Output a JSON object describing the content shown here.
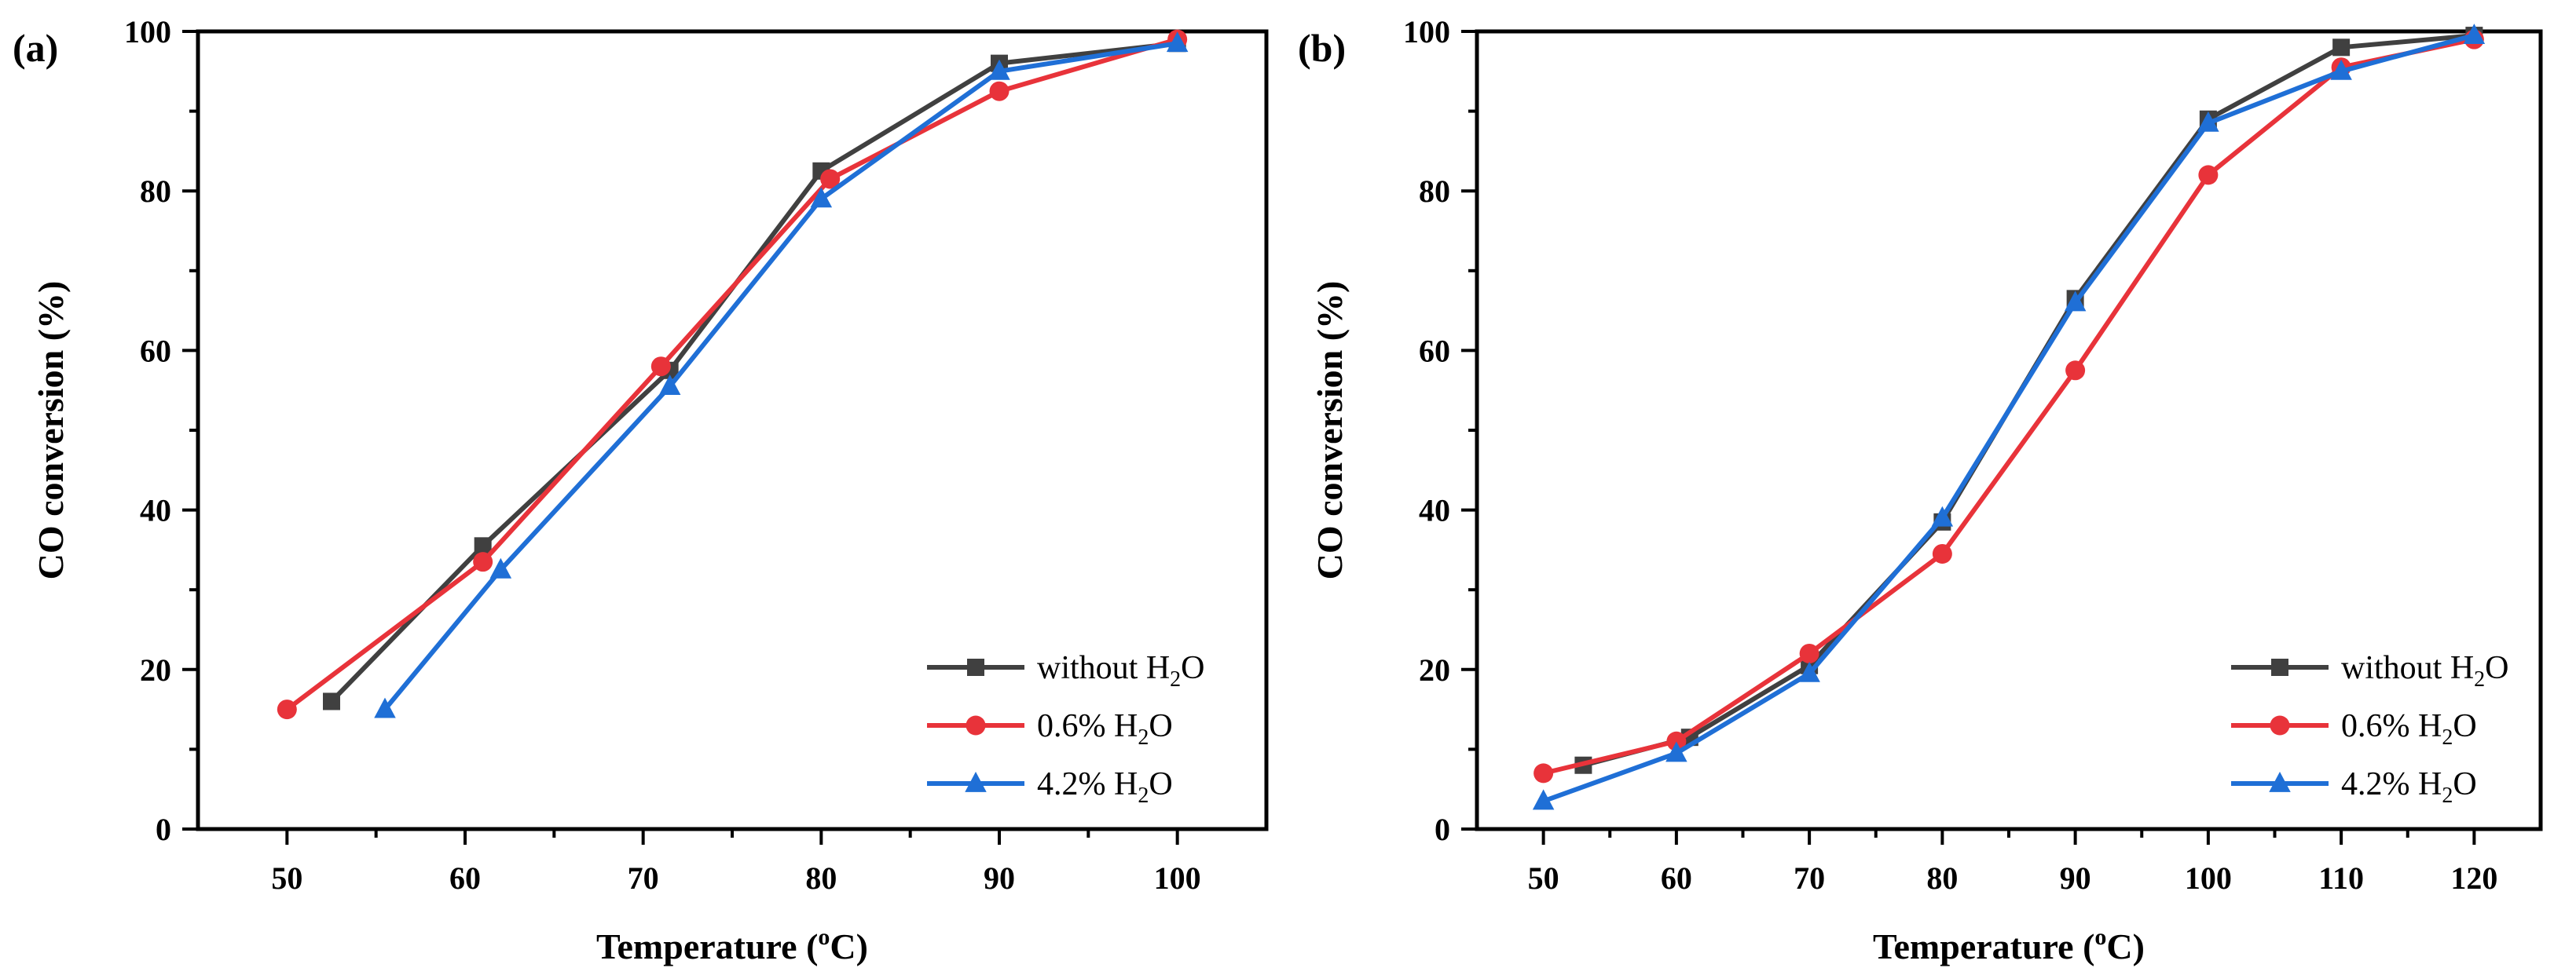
{
  "chart_data": [
    {
      "panel": "(a)",
      "type": "line",
      "xlabel": "Temperature",
      "xlabel_unit": "(",
      "xlabel_sup": "o",
      "xlabel_unit_end": "C)",
      "ylabel": "CO conversion (%)",
      "xlim": [
        45,
        105
      ],
      "ylim": [
        0,
        100
      ],
      "xticks": [
        50,
        60,
        70,
        80,
        90,
        100
      ],
      "yticks": [
        0,
        20,
        40,
        60,
        80,
        100
      ],
      "legend_position": "bottom-right",
      "series": [
        {
          "name": "without H",
          "sub": "2",
          "name_end": "O",
          "color": "#404040",
          "marker": "square",
          "x": [
            52.5,
            61,
            71.5,
            80,
            90,
            100
          ],
          "y": [
            16,
            35.5,
            57.5,
            82.5,
            96,
            98.5
          ]
        },
        {
          "name": "0.6% H",
          "sub": "2",
          "name_end": "O",
          "color": "#e8333a",
          "marker": "circle",
          "x": [
            50,
            61,
            71,
            80.5,
            90,
            100
          ],
          "y": [
            15,
            33.5,
            58,
            81.5,
            92.5,
            99
          ]
        },
        {
          "name": "4.2% H",
          "sub": "2",
          "name_end": "O",
          "color": "#1f6fd6",
          "marker": "triangle",
          "x": [
            55.5,
            62,
            71.5,
            80,
            90,
            100
          ],
          "y": [
            15,
            32.5,
            55.5,
            79,
            95,
            98.5
          ]
        }
      ]
    },
    {
      "panel": "(b)",
      "type": "line",
      "xlabel": "Temperature",
      "xlabel_unit": "(",
      "xlabel_sup": "o",
      "xlabel_unit_end": "C)",
      "ylabel": "CO conversion (%)",
      "xlim": [
        45,
        125
      ],
      "ylim": [
        0,
        100
      ],
      "xticks": [
        50,
        60,
        70,
        80,
        90,
        100,
        110,
        120
      ],
      "yticks": [
        0,
        20,
        40,
        60,
        80,
        100
      ],
      "legend_position": "bottom-right",
      "series": [
        {
          "name": "without H",
          "sub": "2",
          "name_end": "O",
          "color": "#404040",
          "marker": "square",
          "x": [
            53,
            61,
            70,
            80,
            90,
            100,
            110,
            120
          ],
          "y": [
            8,
            11.5,
            20.5,
            38.5,
            66.5,
            89,
            98,
            99.5
          ]
        },
        {
          "name": "0.6% H",
          "sub": "2",
          "name_end": "O",
          "color": "#e8333a",
          "marker": "circle",
          "x": [
            50,
            60,
            70,
            80,
            90,
            100,
            110,
            120
          ],
          "y": [
            7,
            11,
            22,
            34.5,
            57.5,
            82,
            95.5,
            99
          ]
        },
        {
          "name": "4.2% H",
          "sub": "2",
          "name_end": "O",
          "color": "#1f6fd6",
          "marker": "triangle",
          "x": [
            50,
            60,
            70,
            80,
            90,
            100,
            110,
            120
          ],
          "y": [
            3.5,
            9.5,
            19.5,
            39,
            66,
            88.5,
            95,
            99.5
          ]
        }
      ]
    }
  ]
}
